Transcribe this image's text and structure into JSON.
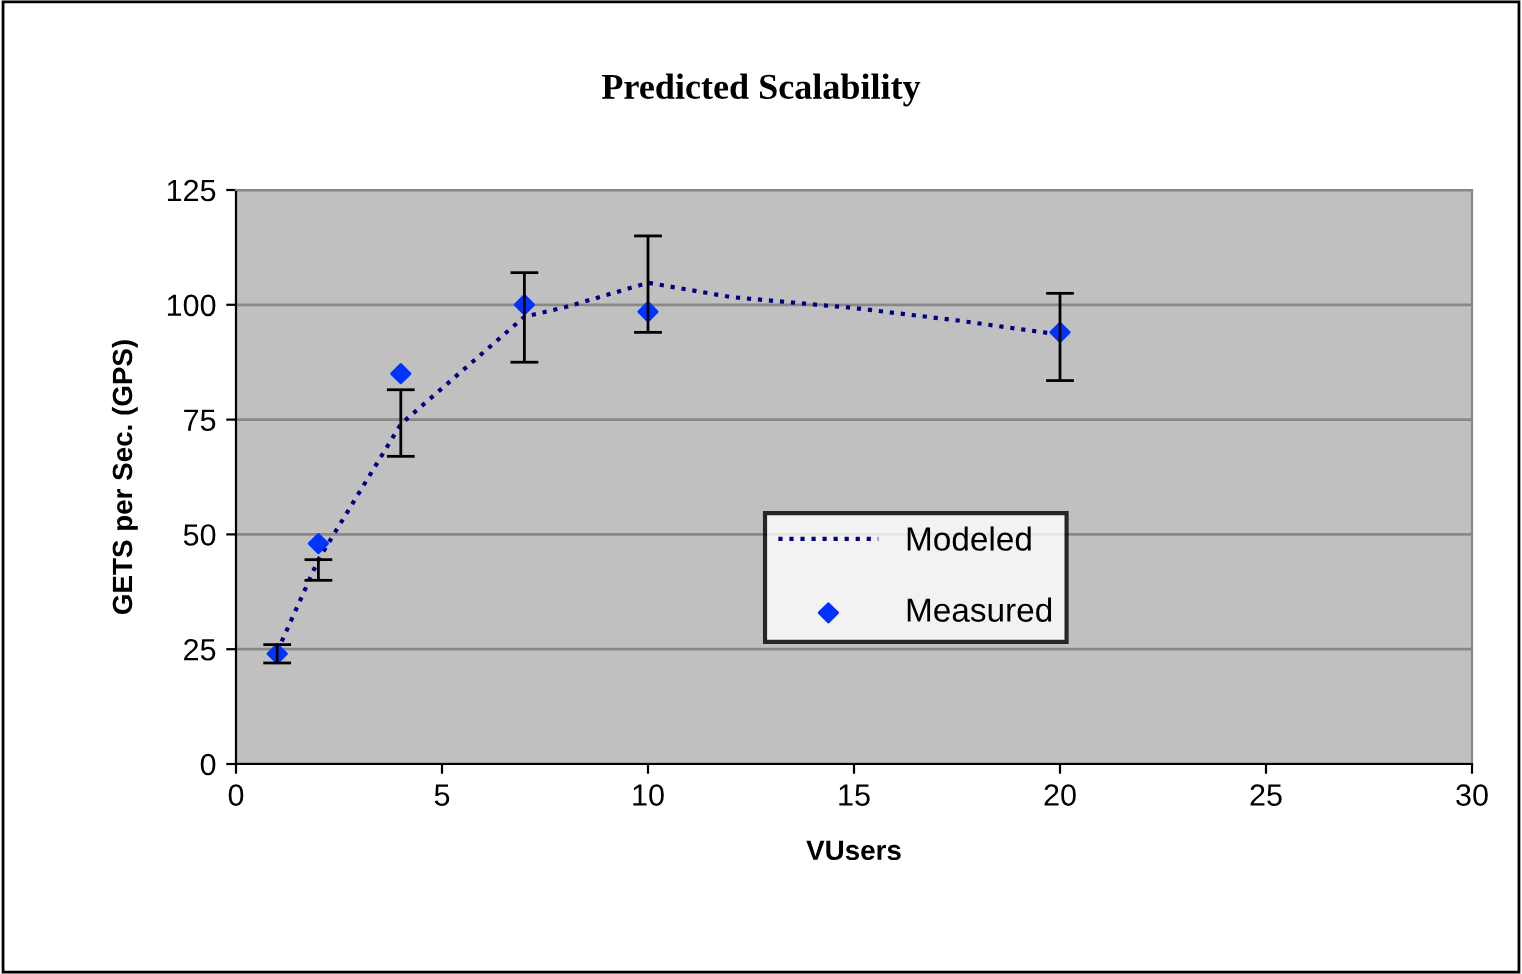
{
  "chart_data": {
    "type": "line",
    "title": "Predicted Scalability",
    "xlabel": "VUsers",
    "ylabel": "GETS per Sec. (GPS)",
    "xlim": [
      0,
      30
    ],
    "xticks": [
      0,
      5,
      10,
      15,
      20,
      25,
      30
    ],
    "ylim": [
      0,
      125
    ],
    "yticks": [
      0,
      25,
      50,
      75,
      100,
      125
    ],
    "grid": "y",
    "legend": "right",
    "series": [
      {
        "name": "Modeled",
        "color": "#000080",
        "line_style": "dotted",
        "marker": "none",
        "x": [
          1,
          2,
          4,
          7,
          8,
          10,
          12,
          15,
          17.5,
          20
        ],
        "values": [
          24.5,
          44.5,
          74,
          97.4,
          99.5,
          104.8,
          101.7,
          99.3,
          96.6,
          93.5
        ],
        "errors": [
          [
            22,
            26
          ],
          [
            40,
            44.5
          ],
          [
            67,
            81.5
          ],
          [
            87.5,
            107
          ],
          null,
          [
            94,
            115
          ],
          null,
          null,
          null,
          [
            83.5,
            102.5
          ]
        ]
      },
      {
        "name": "Measured",
        "type": "scatter",
        "color": "#0033ff",
        "marker": "diamond",
        "x": [
          1,
          2,
          4,
          7,
          10,
          20
        ],
        "values": [
          24,
          48,
          85,
          100,
          98.5,
          94
        ]
      }
    ]
  }
}
